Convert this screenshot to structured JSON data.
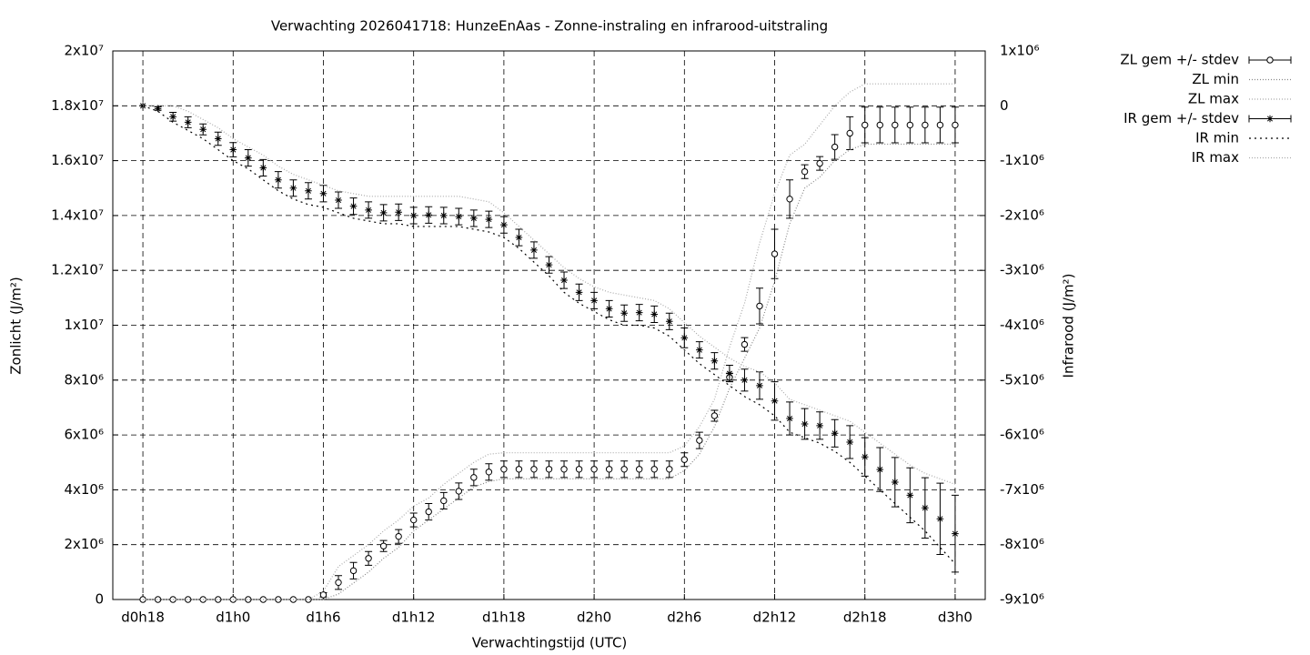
{
  "chart_data": {
    "type": "errorbars",
    "title": "Verwachting 2026041718: HunzeEnAas - Zonne-instraling en infrarood-uitstraling",
    "xlabel": "Verwachtingstijd (UTC)",
    "ylabel": "Zonlicht (J/m²)",
    "y2label": "Infrarood (J/m²)",
    "grid": true,
    "legend": "outside-right",
    "xlim": [
      16,
      74
    ],
    "xticks": [
      {
        "value": 18,
        "label": "d0h18"
      },
      {
        "value": 24,
        "label": "d1h0"
      },
      {
        "value": 30,
        "label": "d1h6"
      },
      {
        "value": 36,
        "label": "d1h12"
      },
      {
        "value": 42,
        "label": "d1h18"
      },
      {
        "value": 48,
        "label": "d2h0"
      },
      {
        "value": 54,
        "label": "d2h6"
      },
      {
        "value": 60,
        "label": "d2h12"
      },
      {
        "value": 66,
        "label": "d2h18"
      },
      {
        "value": 72,
        "label": "d3h0"
      }
    ],
    "ylim": [
      0,
      20000000
    ],
    "yticks": [
      0,
      {
        "value": 2000000,
        "label": "2x10⁶"
      },
      {
        "value": 4000000,
        "label": "4x10⁶"
      },
      {
        "value": 6000000,
        "label": "6x10⁶"
      },
      {
        "value": 8000000,
        "label": "8x10⁶"
      },
      {
        "value": 10000000,
        "label": "1x10⁷"
      },
      {
        "value": 12000000,
        "label": "1.2x10⁷"
      },
      {
        "value": 14000000,
        "label": "1.4x10⁷"
      },
      {
        "value": 16000000,
        "label": "1.6x10⁷"
      },
      {
        "value": 18000000,
        "label": "1.8x10⁷"
      },
      {
        "value": 20000000,
        "label": "2x10⁷"
      }
    ],
    "y2lim": [
      -9000000,
      1000000
    ],
    "y2ticks": [
      {
        "value": -9000000,
        "label": "-9x10⁶"
      },
      {
        "value": -8000000,
        "label": "-8x10⁶"
      },
      {
        "value": -7000000,
        "label": "-7x10⁶"
      },
      {
        "value": -6000000,
        "label": "-6x10⁶"
      },
      {
        "value": -5000000,
        "label": "-5x10⁶"
      },
      {
        "value": -4000000,
        "label": "-4x10⁶"
      },
      {
        "value": -3000000,
        "label": "-3x10⁶"
      },
      {
        "value": -2000000,
        "label": "-2x10⁶"
      },
      {
        "value": -1000000,
        "label": "-1x10⁶"
      },
      0,
      {
        "value": 1000000,
        "label": "1x10⁶"
      }
    ],
    "x": [
      18,
      19,
      20,
      21,
      22,
      23,
      24,
      25,
      26,
      27,
      28,
      29,
      30,
      31,
      32,
      33,
      34,
      35,
      36,
      37,
      38,
      39,
      40,
      41,
      42,
      43,
      44,
      45,
      46,
      47,
      48,
      49,
      50,
      51,
      52,
      53,
      54,
      55,
      56,
      57,
      58,
      59,
      60,
      61,
      62,
      63,
      64,
      65,
      66,
      67,
      68,
      69,
      70,
      71,
      72
    ],
    "series": [
      {
        "name": "ZL gem +/- stdev",
        "style": "errorbars",
        "marker": "circle",
        "color": "#000000",
        "values": [
          0,
          0,
          0,
          0,
          0,
          0,
          0,
          0,
          0,
          0,
          0,
          0,
          170000,
          620000,
          1050000,
          1500000,
          1950000,
          2300000,
          2900000,
          3200000,
          3600000,
          3950000,
          4450000,
          4650000,
          4750000,
          4750000,
          4750000,
          4750000,
          4750000,
          4750000,
          4750000,
          4750000,
          4750000,
          4750000,
          4750000,
          4750000,
          5100000,
          5800000,
          6700000,
          8100000,
          9300000,
          10700000,
          12600000,
          14600000,
          15600000,
          15900000,
          16500000,
          17000000,
          17300000,
          17300000,
          17300000,
          17300000,
          17300000,
          17300000,
          17300000
        ],
        "errors": [
          0,
          0,
          0,
          0,
          0,
          0,
          0,
          0,
          0,
          0,
          0,
          0,
          80000,
          250000,
          300000,
          250000,
          200000,
          250000,
          250000,
          300000,
          300000,
          300000,
          300000,
          300000,
          300000,
          300000,
          300000,
          300000,
          300000,
          300000,
          300000,
          300000,
          300000,
          300000,
          300000,
          300000,
          250000,
          300000,
          200000,
          150000,
          250000,
          650000,
          900000,
          700000,
          250000,
          250000,
          450000,
          600000,
          650000,
          650000,
          650000,
          650000,
          650000,
          650000,
          650000
        ]
      },
      {
        "name": "ZL min",
        "style": "lines",
        "dash": "1 2",
        "color": "#888888",
        "values": [
          0,
          0,
          0,
          0,
          0,
          0,
          0,
          0,
          0,
          0,
          0,
          0,
          0,
          200000,
          600000,
          1000000,
          1500000,
          1900000,
          2500000,
          2900000,
          3300000,
          3700000,
          4100000,
          4300000,
          4400000,
          4400000,
          4400000,
          4400000,
          4400000,
          4400000,
          4400000,
          4400000,
          4400000,
          4400000,
          4400000,
          4400000,
          4700000,
          5300000,
          6300000,
          7700000,
          8800000,
          9900000,
          11600000,
          13700000,
          15000000,
          15400000,
          16000000,
          16400000,
          16600000,
          16600000,
          16600000,
          16600000,
          16600000,
          16600000,
          16600000
        ]
      },
      {
        "name": "ZL max",
        "style": "lines",
        "dash": "1 2",
        "color": "#aaaaaa",
        "values": [
          0,
          0,
          0,
          0,
          0,
          0,
          0,
          0,
          0,
          0,
          0,
          0,
          300000,
          1200000,
          1600000,
          2000000,
          2500000,
          2900000,
          3400000,
          3700000,
          4200000,
          4600000,
          5000000,
          5300000,
          5350000,
          5350000,
          5350000,
          5350000,
          5350000,
          5350000,
          5350000,
          5350000,
          5350000,
          5350000,
          5350000,
          5350000,
          5600000,
          6300000,
          7300000,
          9200000,
          10800000,
          13000000,
          14800000,
          16200000,
          16600000,
          17300000,
          18000000,
          18500000,
          18800000,
          18800000,
          18800000,
          18800000,
          18800000,
          18800000,
          18800000
        ]
      },
      {
        "name": "IR gem +/- stdev",
        "style": "errorbars",
        "marker": "star",
        "color": "#000000",
        "axis": "y2",
        "values": [
          0,
          -50000,
          -200000,
          -300000,
          -430000,
          -600000,
          -800000,
          -950000,
          -1130000,
          -1350000,
          -1500000,
          -1550000,
          -1600000,
          -1720000,
          -1830000,
          -1900000,
          -1950000,
          -1940000,
          -2000000,
          -1990000,
          -2000000,
          -2020000,
          -2050000,
          -2070000,
          -2170000,
          -2400000,
          -2630000,
          -2900000,
          -3180000,
          -3400000,
          -3550000,
          -3700000,
          -3780000,
          -3770000,
          -3800000,
          -3930000,
          -4230000,
          -4450000,
          -4650000,
          -4880000,
          -5000000,
          -5100000,
          -5380000,
          -5700000,
          -5800000,
          -5830000,
          -5970000,
          -6130000,
          -6400000,
          -6630000,
          -6860000,
          -7100000,
          -7330000,
          -7530000,
          -7800000
        ],
        "errors": [
          0,
          30000,
          80000,
          100000,
          100000,
          120000,
          130000,
          150000,
          150000,
          150000,
          150000,
          150000,
          150000,
          150000,
          150000,
          150000,
          150000,
          150000,
          150000,
          150000,
          150000,
          150000,
          150000,
          150000,
          150000,
          150000,
          150000,
          150000,
          150000,
          150000,
          150000,
          150000,
          150000,
          150000,
          150000,
          150000,
          180000,
          150000,
          150000,
          150000,
          200000,
          250000,
          350000,
          300000,
          280000,
          250000,
          250000,
          300000,
          350000,
          400000,
          450000,
          500000,
          550000,
          650000,
          700000
        ]
      },
      {
        "name": "IR min",
        "style": "lines",
        "dash": "2 4",
        "color": "#000000",
        "axis": "y2",
        "values": [
          0,
          -100000,
          -300000,
          -450000,
          -600000,
          -800000,
          -1000000,
          -1150000,
          -1350000,
          -1550000,
          -1700000,
          -1800000,
          -1850000,
          -1950000,
          -2050000,
          -2100000,
          -2150000,
          -2150000,
          -2200000,
          -2200000,
          -2200000,
          -2200000,
          -2250000,
          -2300000,
          -2400000,
          -2600000,
          -2850000,
          -3100000,
          -3400000,
          -3600000,
          -3750000,
          -3900000,
          -4000000,
          -4000000,
          -4050000,
          -4200000,
          -4450000,
          -4700000,
          -4900000,
          -5100000,
          -5300000,
          -5450000,
          -5650000,
          -5950000,
          -6050000,
          -6150000,
          -6300000,
          -6500000,
          -6750000,
          -7000000,
          -7250000,
          -7500000,
          -7750000,
          -8050000,
          -8350000
        ]
      },
      {
        "name": "IR max",
        "style": "lines",
        "dash": "1 2",
        "color": "#aaaaaa",
        "axis": "y2",
        "values": [
          0,
          0,
          0,
          -100000,
          -250000,
          -400000,
          -600000,
          -750000,
          -900000,
          -1100000,
          -1250000,
          -1350000,
          -1450000,
          -1550000,
          -1600000,
          -1650000,
          -1650000,
          -1650000,
          -1650000,
          -1650000,
          -1650000,
          -1650000,
          -1700000,
          -1750000,
          -1950000,
          -2200000,
          -2450000,
          -2700000,
          -2950000,
          -3150000,
          -3300000,
          -3400000,
          -3450000,
          -3500000,
          -3550000,
          -3700000,
          -3950000,
          -4200000,
          -4400000,
          -4600000,
          -4750000,
          -4850000,
          -5050000,
          -5350000,
          -5450000,
          -5550000,
          -5650000,
          -5750000,
          -5950000,
          -6150000,
          -6350000,
          -6550000,
          -6700000,
          -6800000,
          -6900000
        ]
      }
    ]
  }
}
